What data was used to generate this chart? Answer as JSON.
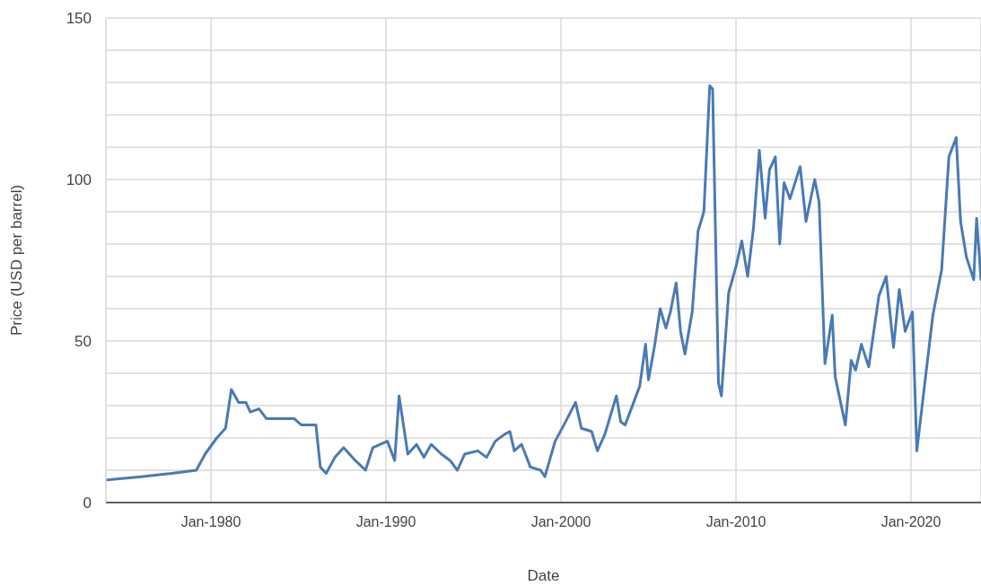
{
  "chart_data": {
    "type": "line",
    "xlabel": "Date",
    "ylabel": "Price (USD per barrel)",
    "x": [
      "1974-02",
      "1976-01",
      "1977-10",
      "1979-03",
      "1979-09",
      "1980-05",
      "1980-11",
      "1981-03",
      "1981-08",
      "1982-01",
      "1982-04",
      "1982-10",
      "1983-03",
      "1984-10",
      "1985-03",
      "1986-01",
      "1986-04",
      "1986-08",
      "1987-02",
      "1987-08",
      "1988-04",
      "1988-11",
      "1989-04",
      "1990-02",
      "1990-07",
      "1990-10",
      "1991-04",
      "1991-10",
      "1992-03",
      "1992-08",
      "1993-03",
      "1993-09",
      "1994-02",
      "1994-07",
      "1995-04",
      "1995-10",
      "1996-04",
      "1996-10",
      "1997-02",
      "1997-05",
      "1997-10",
      "1998-04",
      "1998-11",
      "1999-02",
      "1999-09",
      "2000-03",
      "2000-11",
      "2001-03",
      "2001-10",
      "2002-02",
      "2002-07",
      "2003-03",
      "2003-06",
      "2003-09",
      "2004-07",
      "2004-11",
      "2005-01",
      "2005-05",
      "2005-09",
      "2006-01",
      "2006-04",
      "2006-08",
      "2006-11",
      "2007-02",
      "2007-07",
      "2007-11",
      "2008-03",
      "2008-07",
      "2008-09",
      "2009-01",
      "2009-03",
      "2009-08",
      "2010-01",
      "2010-05",
      "2010-09",
      "2011-01",
      "2011-05",
      "2011-09",
      "2011-12",
      "2012-04",
      "2012-07",
      "2012-10",
      "2013-02",
      "2013-09",
      "2014-01",
      "2014-07",
      "2014-10",
      "2015-02",
      "2015-07",
      "2015-09",
      "2016-04",
      "2016-08",
      "2016-11",
      "2017-03",
      "2017-08",
      "2018-03",
      "2018-08",
      "2019-01",
      "2019-05",
      "2019-09",
      "2020-02",
      "2020-05",
      "2020-11",
      "2021-04",
      "2021-10",
      "2022-03",
      "2022-08",
      "2022-11",
      "2023-03",
      "2023-08",
      "2023-10",
      "2024-01"
    ],
    "series": [
      {
        "color": "#4a7ab5",
        "values": [
          7,
          8,
          9,
          10,
          15,
          20,
          23,
          35,
          31,
          31,
          28,
          29,
          26,
          26,
          24,
          24,
          11,
          9,
          14,
          17,
          13,
          10,
          17,
          19,
          13,
          33,
          15,
          18,
          14,
          18,
          15,
          13,
          10,
          15,
          16,
          14,
          19,
          21,
          22,
          16,
          18,
          11,
          10,
          8,
          19,
          24,
          31,
          23,
          22,
          16,
          21,
          33,
          25,
          24,
          36,
          49,
          38,
          48,
          60,
          54,
          59,
          68,
          53,
          46,
          59,
          84,
          90,
          129,
          128,
          37,
          33,
          65,
          73,
          81,
          70,
          85,
          109,
          88,
          103,
          107,
          80,
          99,
          94,
          104,
          87,
          100,
          93,
          43,
          58,
          39,
          24,
          44,
          41,
          49,
          42,
          64,
          70,
          48,
          66,
          53,
          59,
          16,
          39,
          58,
          72,
          107,
          113,
          87,
          76,
          69,
          88,
          69
        ]
      }
    ],
    "xlim": [
      "1974-01",
      "2024-01"
    ],
    "xticks": [
      {
        "value": "1980-01",
        "label": "Jan-1980"
      },
      {
        "value": "1990-01",
        "label": "Jan-1990"
      },
      {
        "value": "2000-01",
        "label": "Jan-2000"
      },
      {
        "value": "2010-01",
        "label": "Jan-2010"
      },
      {
        "value": "2020-01",
        "label": "Jan-2020"
      }
    ],
    "ylim": [
      0,
      150
    ],
    "yticks": [
      0,
      {
        "value": 10,
        "label": null
      },
      {
        "value": 20,
        "label": null
      },
      {
        "value": 30,
        "label": null
      },
      {
        "value": 40,
        "label": null
      },
      50,
      {
        "value": 60,
        "label": null
      },
      {
        "value": 70,
        "label": null
      },
      {
        "value": 80,
        "label": null
      },
      {
        "value": 90,
        "label": null
      },
      100,
      {
        "value": 110,
        "label": null
      },
      {
        "value": 120,
        "label": null
      },
      {
        "value": 130,
        "label": null
      },
      {
        "value": 140,
        "label": null
      },
      150
    ],
    "grid": true,
    "legend": false,
    "marker": "none",
    "line_style": "solid"
  }
}
